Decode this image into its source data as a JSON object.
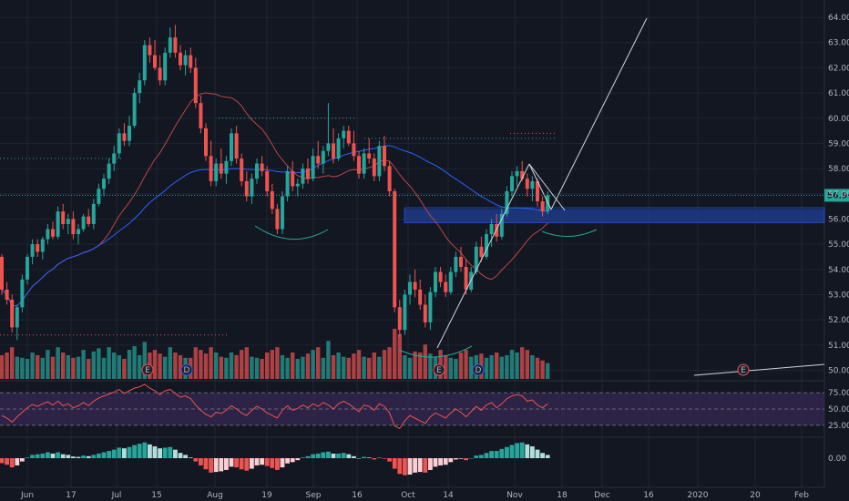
{
  "colors": {
    "background": "#131722",
    "grid": "#1f2433",
    "up": "#26a69a",
    "down": "#ef5350",
    "zone": "#1e3a8a",
    "ma_red": "#b94747",
    "ma_blue": "#2962ff",
    "rsi_line": "#ef5350",
    "rsi_band": "#3b2a5a",
    "hist_light_up": "#b2dfdb",
    "hist_light_down": "#ffcdd2",
    "text": "#b2b5be",
    "price_badge": "#26a69a"
  },
  "chart_data": [
    {
      "type": "candlestick",
      "title": "",
      "current_price": 56.94,
      "current_price_label": "56.94",
      "ylim": [
        49.8,
        64.4
      ],
      "y_ticks": [
        64,
        63,
        62,
        61,
        60,
        59,
        58,
        57,
        56,
        55,
        54,
        53,
        52,
        51,
        50
      ],
      "y_tick_labels": [
        "64.00",
        "63.00",
        "62.00",
        "61.00",
        "60.00",
        "59.00",
        "58.00",
        "57.00",
        "56.00",
        "55.00",
        "54.00",
        "53.00",
        "52.00",
        "51.00",
        "50.00"
      ],
      "x_tick_labels": [
        "Jun",
        "17",
        "Jul",
        "15",
        "Aug",
        "19",
        "Sep",
        "16",
        "Oct",
        "14",
        "Nov",
        "18",
        "Dec",
        "16",
        "2020",
        "20",
        "Feb"
      ],
      "candles": [
        [
          54.5,
          54.6,
          53.0,
          53.2
        ],
        [
          53.2,
          53.5,
          52.6,
          52.8
        ],
        [
          52.8,
          53.0,
          51.5,
          51.7
        ],
        [
          51.7,
          52.6,
          51.2,
          52.5
        ],
        [
          52.5,
          53.8,
          52.3,
          53.6
        ],
        [
          53.6,
          54.6,
          53.4,
          54.5
        ],
        [
          54.5,
          55.2,
          54.2,
          55.0
        ],
        [
          55.0,
          55.2,
          54.5,
          54.7
        ],
        [
          54.7,
          55.3,
          54.4,
          55.2
        ],
        [
          55.2,
          55.8,
          55.0,
          55.6
        ],
        [
          55.6,
          55.9,
          55.2,
          55.3
        ],
        [
          55.3,
          56.5,
          55.2,
          56.3
        ],
        [
          56.3,
          56.6,
          55.6,
          55.8
        ],
        [
          55.8,
          56.2,
          55.4,
          56.0
        ],
        [
          56.0,
          56.3,
          55.2,
          55.4
        ],
        [
          55.4,
          55.8,
          55.0,
          55.6
        ],
        [
          55.6,
          56.2,
          55.5,
          56.1
        ],
        [
          56.1,
          56.4,
          55.7,
          55.8
        ],
        [
          55.8,
          56.8,
          55.6,
          56.6
        ],
        [
          56.6,
          57.4,
          56.5,
          57.2
        ],
        [
          57.2,
          57.8,
          56.9,
          57.6
        ],
        [
          57.6,
          58.4,
          57.4,
          58.2
        ],
        [
          58.2,
          58.9,
          57.9,
          58.6
        ],
        [
          58.6,
          59.6,
          58.4,
          59.4
        ],
        [
          59.4,
          59.8,
          58.9,
          59.1
        ],
        [
          59.1,
          60.1,
          58.9,
          59.7
        ],
        [
          59.7,
          61.2,
          59.6,
          61.0
        ],
        [
          61.0,
          61.8,
          60.6,
          61.5
        ],
        [
          61.5,
          63.1,
          61.3,
          62.9
        ],
        [
          62.9,
          63.2,
          62.2,
          62.5
        ],
        [
          62.5,
          63.1,
          61.9,
          62.0
        ],
        [
          62.0,
          62.5,
          61.3,
          61.5
        ],
        [
          61.5,
          62.8,
          61.3,
          62.6
        ],
        [
          62.6,
          63.6,
          62.4,
          63.2
        ],
        [
          63.2,
          63.7,
          62.4,
          62.6
        ],
        [
          62.6,
          62.9,
          61.9,
          62.1
        ],
        [
          62.1,
          62.7,
          61.7,
          62.5
        ],
        [
          62.5,
          62.8,
          61.8,
          62.0
        ],
        [
          62.0,
          62.4,
          60.4,
          60.6
        ],
        [
          60.6,
          60.9,
          59.4,
          59.6
        ],
        [
          59.6,
          59.8,
          58.3,
          58.5
        ],
        [
          58.5,
          59.1,
          57.3,
          57.5
        ],
        [
          57.5,
          58.4,
          57.3,
          58.2
        ],
        [
          58.2,
          58.8,
          57.6,
          57.8
        ],
        [
          57.8,
          58.5,
          57.4,
          58.3
        ],
        [
          58.3,
          59.6,
          58.1,
          59.4
        ],
        [
          59.4,
          59.7,
          58.2,
          58.4
        ],
        [
          58.4,
          58.6,
          57.3,
          57.5
        ],
        [
          57.5,
          57.9,
          56.7,
          56.9
        ],
        [
          56.9,
          57.8,
          56.6,
          57.6
        ],
        [
          57.6,
          58.4,
          57.4,
          58.2
        ],
        [
          58.2,
          58.5,
          57.7,
          57.9
        ],
        [
          57.9,
          58.1,
          56.9,
          57.1
        ],
        [
          57.1,
          57.4,
          56.2,
          56.4
        ],
        [
          56.4,
          56.6,
          55.4,
          55.6
        ],
        [
          55.6,
          57.1,
          55.4,
          56.9
        ],
        [
          56.9,
          58.1,
          56.7,
          57.9
        ],
        [
          57.9,
          58.3,
          57.1,
          57.3
        ],
        [
          57.3,
          57.6,
          56.9,
          57.4
        ],
        [
          57.4,
          58.2,
          57.2,
          58.0
        ],
        [
          58.0,
          58.4,
          57.4,
          57.6
        ],
        [
          57.6,
          58.8,
          57.5,
          58.5
        ],
        [
          58.5,
          59.1,
          58.0,
          58.2
        ],
        [
          58.2,
          58.9,
          57.8,
          58.7
        ],
        [
          58.7,
          60.6,
          58.5,
          59.0
        ],
        [
          59.0,
          59.6,
          58.2,
          58.4
        ],
        [
          58.4,
          59.4,
          58.3,
          59.2
        ],
        [
          59.2,
          59.7,
          58.8,
          59.5
        ],
        [
          59.5,
          59.7,
          58.9,
          59.0
        ],
        [
          59.0,
          59.5,
          58.3,
          58.5
        ],
        [
          58.5,
          58.7,
          57.6,
          57.8
        ],
        [
          57.8,
          58.8,
          57.6,
          58.6
        ],
        [
          58.6,
          59.2,
          58.2,
          58.4
        ],
        [
          58.4,
          58.6,
          57.5,
          57.7
        ],
        [
          57.7,
          59.1,
          57.5,
          58.9
        ],
        [
          58.9,
          59.3,
          57.9,
          58.1
        ],
        [
          58.1,
          58.3,
          56.9,
          57.1
        ],
        [
          57.1,
          57.2,
          52.3,
          52.5
        ],
        [
          52.5,
          52.8,
          51.3,
          51.6
        ],
        [
          51.6,
          53.2,
          51.4,
          53.0
        ],
        [
          53.0,
          53.8,
          52.6,
          53.5
        ],
        [
          53.5,
          54.0,
          52.9,
          53.2
        ],
        [
          53.2,
          53.6,
          52.4,
          52.6
        ],
        [
          52.6,
          53.0,
          51.7,
          51.9
        ],
        [
          51.9,
          53.3,
          51.6,
          53.1
        ],
        [
          53.1,
          54.1,
          52.9,
          53.9
        ],
        [
          53.9,
          54.1,
          53.3,
          53.5
        ],
        [
          53.5,
          53.8,
          52.9,
          53.1
        ],
        [
          53.1,
          54.1,
          53.0,
          53.9
        ],
        [
          53.9,
          54.7,
          53.7,
          54.5
        ],
        [
          54.5,
          54.9,
          53.9,
          54.1
        ],
        [
          54.1,
          54.4,
          53.0,
          53.2
        ],
        [
          53.2,
          54.1,
          53.1,
          53.9
        ],
        [
          53.9,
          55.1,
          53.8,
          54.9
        ],
        [
          54.9,
          55.3,
          54.3,
          54.5
        ],
        [
          54.5,
          55.6,
          54.4,
          55.4
        ],
        [
          55.4,
          56.0,
          54.9,
          55.8
        ],
        [
          55.8,
          56.2,
          55.1,
          55.3
        ],
        [
          55.3,
          56.4,
          55.2,
          56.2
        ],
        [
          56.2,
          57.3,
          56.1,
          57.1
        ],
        [
          57.1,
          57.9,
          56.9,
          57.7
        ],
        [
          57.7,
          58.1,
          57.3,
          57.9
        ],
        [
          57.9,
          58.3,
          57.5,
          57.6
        ],
        [
          57.6,
          57.8,
          56.9,
          57.2
        ],
        [
          57.2,
          57.7,
          56.7,
          57.5
        ],
        [
          57.5,
          57.6,
          56.5,
          56.7
        ],
        [
          56.7,
          56.9,
          56.1,
          56.3
        ],
        [
          56.3,
          57.1,
          56.2,
          56.94
        ]
      ],
      "volume": [
        0.45,
        0.5,
        0.6,
        0.42,
        0.4,
        0.38,
        0.5,
        0.45,
        0.4,
        0.55,
        0.42,
        0.6,
        0.5,
        0.45,
        0.4,
        0.42,
        0.55,
        0.38,
        0.52,
        0.58,
        0.4,
        0.6,
        0.5,
        0.45,
        0.38,
        0.55,
        0.62,
        0.45,
        0.7,
        0.5,
        0.55,
        0.48,
        0.42,
        0.6,
        0.5,
        0.45,
        0.4,
        0.4,
        0.6,
        0.55,
        0.48,
        0.6,
        0.5,
        0.42,
        0.4,
        0.5,
        0.45,
        0.55,
        0.6,
        0.42,
        0.4,
        0.38,
        0.5,
        0.55,
        0.6,
        0.45,
        0.4,
        0.5,
        0.38,
        0.42,
        0.48,
        0.55,
        0.6,
        0.4,
        0.72,
        0.45,
        0.5,
        0.42,
        0.4,
        0.48,
        0.55,
        0.42,
        0.4,
        0.5,
        0.42,
        0.55,
        0.6,
        0.95,
        0.85,
        0.45,
        0.4,
        0.52,
        0.5,
        0.65,
        0.48,
        0.42,
        0.55,
        0.45,
        0.4,
        0.38,
        0.5,
        0.55,
        0.42,
        0.45,
        0.48,
        0.4,
        0.45,
        0.5,
        0.42,
        0.45,
        0.55,
        0.5,
        0.6,
        0.55,
        0.45,
        0.4,
        0.35,
        0.3
      ],
      "earnings_markers": [
        "E",
        "D",
        "E",
        "D",
        "E"
      ],
      "rsi": {
        "ylim": [
          15,
          85
        ],
        "y_ticks": [
          75,
          50,
          25
        ],
        "y_tick_labels": [
          "75.00",
          "50.00",
          "25.00"
        ],
        "values": [
          40,
          36,
          30,
          38,
          45,
          52,
          57,
          54,
          58,
          61,
          56,
          62,
          55,
          58,
          52,
          55,
          60,
          55,
          62,
          67,
          70,
          73,
          76,
          80,
          74,
          78,
          82,
          84,
          88,
          82,
          78,
          72,
          78,
          80,
          74,
          68,
          70,
          66,
          56,
          48,
          42,
          38,
          45,
          43,
          48,
          55,
          50,
          44,
          40,
          48,
          54,
          50,
          44,
          40,
          36,
          48,
          55,
          48,
          51,
          56,
          52,
          58,
          54,
          60,
          56,
          50,
          58,
          62,
          58,
          52,
          46,
          56,
          54,
          48,
          58,
          54,
          44,
          24,
          20,
          32,
          40,
          36,
          32,
          28,
          38,
          44,
          40,
          36,
          44,
          50,
          45,
          38,
          46,
          54,
          48,
          56,
          60,
          52,
          58,
          66,
          70,
          72,
          70,
          62,
          64,
          56,
          52,
          58
        ]
      },
      "macd_hist": {
        "values": [
          -0.15,
          -0.2,
          -0.28,
          -0.22,
          -0.1,
          0.02,
          0.1,
          0.12,
          0.14,
          0.18,
          0.14,
          0.18,
          0.12,
          0.1,
          0.05,
          0.04,
          0.08,
          0.06,
          0.1,
          0.14,
          0.18,
          0.22,
          0.26,
          0.32,
          0.3,
          0.34,
          0.4,
          0.44,
          0.48,
          0.42,
          0.36,
          0.3,
          0.32,
          0.34,
          0.26,
          0.16,
          0.1,
          0.02,
          -0.1,
          -0.22,
          -0.34,
          -0.44,
          -0.42,
          -0.4,
          -0.36,
          -0.26,
          -0.28,
          -0.34,
          -0.38,
          -0.32,
          -0.22,
          -0.2,
          -0.24,
          -0.3,
          -0.36,
          -0.28,
          -0.16,
          -0.12,
          -0.06,
          0.02,
          0.06,
          0.12,
          0.14,
          0.18,
          0.2,
          0.14,
          0.14,
          0.16,
          0.12,
          0.06,
          0.0,
          0.04,
          0.02,
          -0.04,
          0.02,
          -0.02,
          -0.1,
          -0.32,
          -0.48,
          -0.52,
          -0.5,
          -0.44,
          -0.42,
          -0.44,
          -0.36,
          -0.26,
          -0.22,
          -0.2,
          -0.12,
          -0.04,
          -0.02,
          -0.06,
          0.0,
          0.08,
          0.1,
          0.16,
          0.22,
          0.22,
          0.28,
          0.34,
          0.4,
          0.46,
          0.48,
          0.42,
          0.36,
          0.26,
          0.16,
          0.1
        ]
      }
    }
  ]
}
